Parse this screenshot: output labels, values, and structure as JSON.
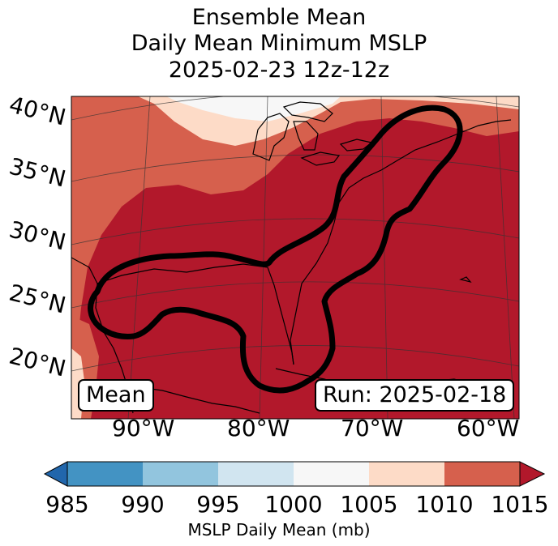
{
  "title": {
    "line1": "Ensemble Mean",
    "line2": "Daily Mean Minimum MSLP",
    "line3": "2025-02-23 12z-12z"
  },
  "map": {
    "projection": "lambert-conformal",
    "extent_lon": [
      -96,
      -58
    ],
    "extent_lat": [
      15,
      41
    ],
    "lat_ticks": [
      "40°N",
      "35°N",
      "30°N",
      "25°N",
      "20°N"
    ],
    "lon_ticks": [
      "90°W",
      "80°W",
      "70°W",
      "60°W"
    ],
    "contour_outline_color": "#000000",
    "coastline_color": "#000000"
  },
  "badges": {
    "left": "Mean",
    "right": "Run: 2025-02-18"
  },
  "colorbar": {
    "label": "MSLP Daily Mean (mb)",
    "ticks": [
      "985",
      "990",
      "995",
      "1000",
      "1005",
      "1010",
      "1015"
    ],
    "colors": [
      "#2166ac",
      "#4393c3",
      "#92c5de",
      "#d1e5f0",
      "#f7f7f7",
      "#fddbc7",
      "#d6604d",
      "#b2182b"
    ],
    "extend": "both"
  }
}
